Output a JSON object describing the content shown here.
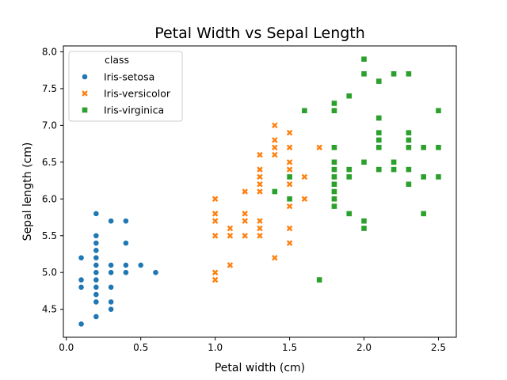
{
  "chart_data": {
    "type": "scatter",
    "title": "Petal Width vs Sepal Length",
    "xlabel": "Petal width (cm)",
    "ylabel": "Sepal length (cm)",
    "xlim": [
      -0.02,
      2.62
    ],
    "ylim": [
      4.12,
      8.08
    ],
    "x_ticks": [
      "0.0",
      "0.5",
      "1.0",
      "1.5",
      "2.0",
      "2.5"
    ],
    "y_ticks": [
      "4.5",
      "5.0",
      "5.5",
      "6.0",
      "6.5",
      "7.0",
      "7.5",
      "8.0"
    ],
    "grid": false,
    "legend": {
      "title": "class",
      "position": "top-left"
    },
    "series": [
      {
        "name": "Iris-setosa",
        "marker": "circle",
        "color": "#1f77b4",
        "points": [
          [
            0.1,
            4.3
          ],
          [
            0.1,
            4.8
          ],
          [
            0.1,
            4.9
          ],
          [
            0.1,
            5.2
          ],
          [
            0.2,
            4.4
          ],
          [
            0.2,
            4.6
          ],
          [
            0.2,
            4.7
          ],
          [
            0.2,
            4.8
          ],
          [
            0.2,
            4.9
          ],
          [
            0.2,
            5.0
          ],
          [
            0.2,
            5.1
          ],
          [
            0.2,
            5.2
          ],
          [
            0.2,
            5.3
          ],
          [
            0.2,
            5.4
          ],
          [
            0.2,
            5.5
          ],
          [
            0.2,
            5.8
          ],
          [
            0.3,
            4.5
          ],
          [
            0.3,
            4.6
          ],
          [
            0.3,
            4.8
          ],
          [
            0.3,
            5.0
          ],
          [
            0.3,
            5.1
          ],
          [
            0.3,
            5.7
          ],
          [
            0.4,
            5.0
          ],
          [
            0.4,
            5.1
          ],
          [
            0.4,
            5.4
          ],
          [
            0.4,
            5.7
          ],
          [
            0.5,
            5.1
          ],
          [
            0.6,
            5.0
          ]
        ]
      },
      {
        "name": "Iris-versicolor",
        "marker": "x",
        "color": "#ff7f0e",
        "points": [
          [
            1.0,
            4.9
          ],
          [
            1.0,
            5.0
          ],
          [
            1.0,
            5.5
          ],
          [
            1.0,
            5.7
          ],
          [
            1.0,
            5.8
          ],
          [
            1.0,
            6.0
          ],
          [
            1.1,
            5.1
          ],
          [
            1.1,
            5.5
          ],
          [
            1.1,
            5.6
          ],
          [
            1.2,
            5.5
          ],
          [
            1.2,
            5.7
          ],
          [
            1.2,
            5.8
          ],
          [
            1.2,
            6.1
          ],
          [
            1.3,
            5.5
          ],
          [
            1.3,
            5.6
          ],
          [
            1.3,
            5.7
          ],
          [
            1.3,
            6.1
          ],
          [
            1.3,
            6.2
          ],
          [
            1.3,
            6.3
          ],
          [
            1.3,
            6.4
          ],
          [
            1.3,
            6.6
          ],
          [
            1.4,
            5.2
          ],
          [
            1.4,
            6.1
          ],
          [
            1.4,
            6.6
          ],
          [
            1.4,
            6.7
          ],
          [
            1.4,
            6.8
          ],
          [
            1.4,
            7.0
          ],
          [
            1.5,
            5.4
          ],
          [
            1.5,
            5.6
          ],
          [
            1.5,
            5.9
          ],
          [
            1.5,
            6.0
          ],
          [
            1.5,
            6.2
          ],
          [
            1.5,
            6.3
          ],
          [
            1.5,
            6.4
          ],
          [
            1.5,
            6.5
          ],
          [
            1.5,
            6.7
          ],
          [
            1.5,
            6.9
          ],
          [
            1.6,
            6.0
          ],
          [
            1.6,
            6.3
          ],
          [
            1.7,
            6.7
          ]
        ]
      },
      {
        "name": "Iris-virginica",
        "marker": "square",
        "color": "#2ca02c",
        "points": [
          [
            1.4,
            6.1
          ],
          [
            1.5,
            6.0
          ],
          [
            1.5,
            6.3
          ],
          [
            1.6,
            7.2
          ],
          [
            1.7,
            4.9
          ],
          [
            1.8,
            5.9
          ],
          [
            1.8,
            6.0
          ],
          [
            1.8,
            6.1
          ],
          [
            1.8,
            6.2
          ],
          [
            1.8,
            6.3
          ],
          [
            1.8,
            6.4
          ],
          [
            1.8,
            6.5
          ],
          [
            1.8,
            6.7
          ],
          [
            1.8,
            7.2
          ],
          [
            1.8,
            7.3
          ],
          [
            1.9,
            5.8
          ],
          [
            1.9,
            6.3
          ],
          [
            1.9,
            6.4
          ],
          [
            1.9,
            7.4
          ],
          [
            2.0,
            5.6
          ],
          [
            2.0,
            5.7
          ],
          [
            2.0,
            6.5
          ],
          [
            2.0,
            7.7
          ],
          [
            2.0,
            7.9
          ],
          [
            2.1,
            6.4
          ],
          [
            2.1,
            6.7
          ],
          [
            2.1,
            6.8
          ],
          [
            2.1,
            6.9
          ],
          [
            2.1,
            7.1
          ],
          [
            2.1,
            7.6
          ],
          [
            2.2,
            6.4
          ],
          [
            2.2,
            6.5
          ],
          [
            2.2,
            7.7
          ],
          [
            2.3,
            6.2
          ],
          [
            2.3,
            6.4
          ],
          [
            2.3,
            6.7
          ],
          [
            2.3,
            6.8
          ],
          [
            2.3,
            6.9
          ],
          [
            2.3,
            7.7
          ],
          [
            2.4,
            5.8
          ],
          [
            2.4,
            6.3
          ],
          [
            2.4,
            6.7
          ],
          [
            2.5,
            6.3
          ],
          [
            2.5,
            6.7
          ],
          [
            2.5,
            7.2
          ]
        ]
      }
    ]
  }
}
